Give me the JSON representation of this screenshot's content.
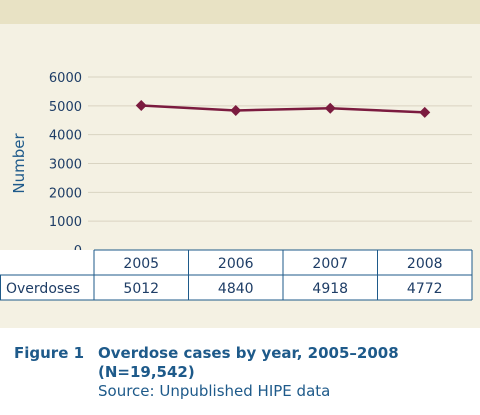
{
  "chart_data": {
    "type": "line",
    "title": "",
    "xlabel": "",
    "ylabel": "Number",
    "ylim": [
      0,
      6000
    ],
    "yticks": [
      0,
      1000,
      2000,
      3000,
      4000,
      5000,
      6000
    ],
    "categories": [
      "2005",
      "2006",
      "2007",
      "2008"
    ],
    "series": [
      {
        "name": "Overdoses",
        "values": [
          5012,
          4840,
          4918,
          4772
        ]
      }
    ],
    "grid": true,
    "legend": "none",
    "data_table": true,
    "colors": {
      "series": "#7b1b3f",
      "grid": "#d9d4c2",
      "axis": "#1e5a8a",
      "ticks": "#1e3d66"
    }
  },
  "caption": {
    "label": "Figure 1",
    "title_line1": "Overdose cases by year, 2005–2008",
    "title_line2": "(N=19,542)",
    "source": "Source: Unpublished HIPE data"
  }
}
